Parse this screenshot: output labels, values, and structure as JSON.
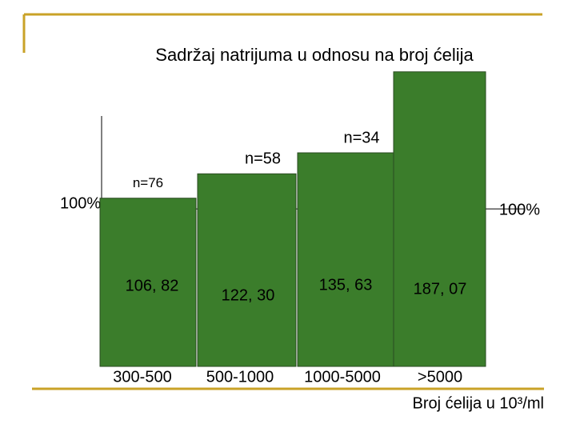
{
  "chart_data": {
    "type": "bar",
    "title": "Sadržaj natrijuma u odnosu na broj ćelija",
    "categories": [
      "300-500",
      "500-1000",
      "1000-5000",
      ">5000"
    ],
    "values": [
      106.82,
      122.3,
      135.63,
      187.07
    ],
    "value_labels": [
      "106, 82",
      "122, 30",
      "135, 63",
      "187, 07"
    ],
    "n_labels": [
      "n=76",
      "n=58",
      "n=34",
      null
    ],
    "reference": {
      "value": 100,
      "label": "100%"
    },
    "xlabel": "Broj ćelija u 10³/ml",
    "color": "#3b7d2b",
    "ylim": [
      0,
      190
    ]
  }
}
